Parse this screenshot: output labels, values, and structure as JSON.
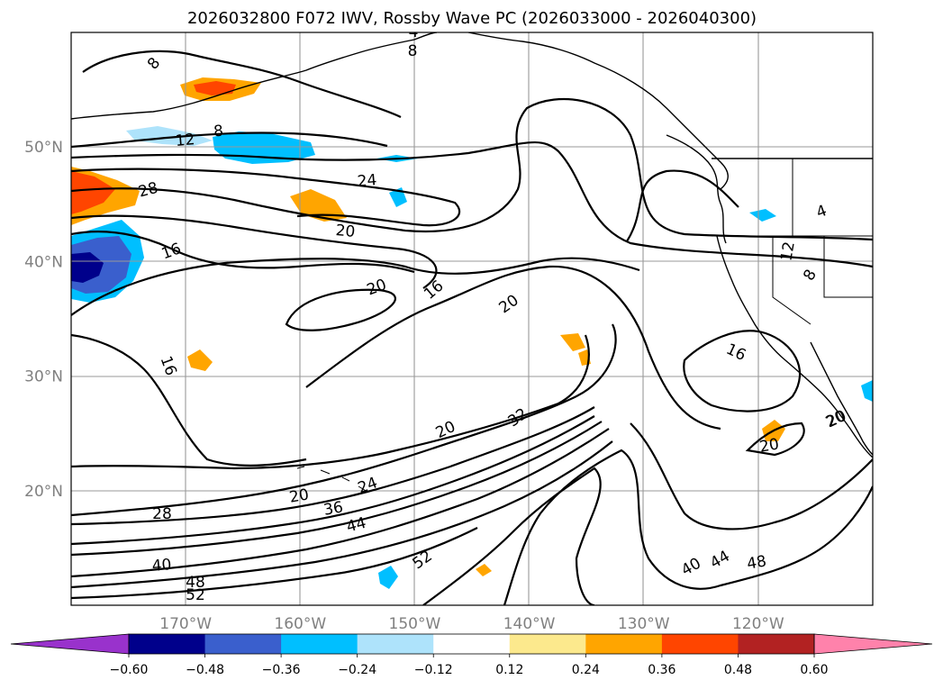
{
  "chart_data": {
    "type": "contour-map",
    "title": "2026032800 F072 IWV, Rossby Wave PC (2026033000 - 2026040300)",
    "lon_ticks": [
      "170°W",
      "160°W",
      "150°W",
      "140°W",
      "130°W",
      "120°W"
    ],
    "lat_ticks": [
      "50°N",
      "40°N",
      "30°N",
      "20°N"
    ],
    "lon_tick_values": [
      -170,
      -160,
      -150,
      -140,
      -130,
      -120
    ],
    "lat_tick_values": [
      50,
      40,
      30,
      20
    ],
    "lon_range": [
      -180,
      -110
    ],
    "lat_range": [
      10,
      60
    ],
    "grid": true,
    "colorbar": {
      "orientation": "horizontal",
      "extend": "both",
      "tick_labels": [
        "−0.60",
        "−0.48",
        "−0.36",
        "−0.24",
        "−0.12",
        "0.12",
        "0.24",
        "0.36",
        "0.48",
        "0.60"
      ],
      "tick_values": [
        -0.6,
        -0.48,
        -0.36,
        -0.24,
        -0.12,
        0.12,
        0.24,
        0.36,
        0.48,
        0.6
      ],
      "colors": [
        "#9932cc",
        "#00008b",
        "#3a5fcd",
        "#00bfff",
        "#aee3fb",
        "#ffffff",
        "#fce98d",
        "#ffa500",
        "#ff4500",
        "#b22222",
        "#ff82ab"
      ]
    },
    "contour_levels": [
      "4",
      "8",
      "12",
      "16",
      "20",
      "24",
      "28",
      "32",
      "36",
      "40",
      "44",
      "48",
      "52"
    ],
    "contour_labels": [
      "8",
      "8",
      "4",
      "12",
      "8",
      "28",
      "24",
      "20",
      "16",
      "20",
      "16",
      "20",
      "16",
      "16",
      "32",
      "20",
      "20",
      "24",
      "20",
      "36",
      "28",
      "44",
      "52",
      "40",
      "48",
      "52",
      "40",
      "44",
      "48",
      "12",
      "8",
      "4",
      "20",
      "20"
    ]
  }
}
